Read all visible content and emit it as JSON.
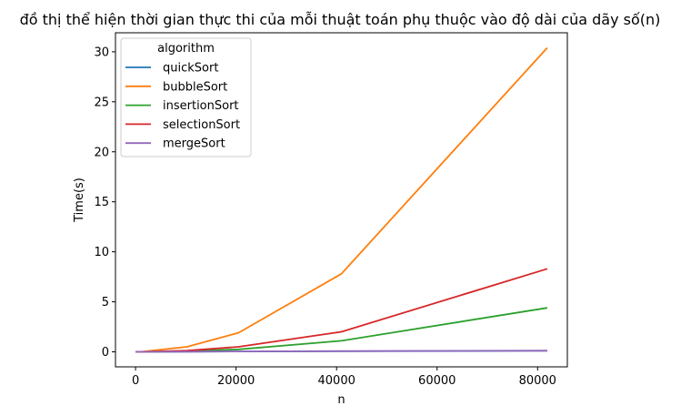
{
  "chart_data": {
    "type": "line",
    "title": "đồ thị thể hiện thời gian thực thi của mỗi thuật toán phụ thuộc vào độ dài của dãy số(n)",
    "xlabel": "n",
    "ylabel": "Time(s)",
    "xlim": [
      -4000,
      85920
    ],
    "ylim": [
      -1.5,
      31.9
    ],
    "xticks": [
      0,
      20000,
      40000,
      60000,
      80000
    ],
    "yticks": [
      0,
      5,
      10,
      15,
      20,
      25,
      30
    ],
    "legend_title": "algorithm",
    "legend_position": "upper-left",
    "grid": false,
    "x": [
      10,
      100,
      1000,
      10240,
      20480,
      40960,
      81920
    ],
    "series": [
      {
        "name": "quickSort",
        "color": "#1f77b4",
        "values": [
          0,
          0,
          0,
          0.02,
          0.04,
          0.06,
          0.1
        ]
      },
      {
        "name": "bubbleSort",
        "color": "#ff7f0e",
        "values": [
          0,
          0,
          0,
          0.5,
          1.9,
          7.8,
          30.4
        ]
      },
      {
        "name": "insertionSort",
        "color": "#2ca02c",
        "values": [
          0,
          0,
          0,
          0.05,
          0.25,
          1.1,
          4.4
        ]
      },
      {
        "name": "selectionSort",
        "color": "#d62728",
        "values": [
          0,
          0,
          0,
          0.12,
          0.5,
          2.0,
          8.3
        ]
      },
      {
        "name": "mergeSort",
        "color": "#9467bd",
        "values": [
          0,
          0,
          0,
          0.02,
          0.04,
          0.07,
          0.12
        ]
      }
    ]
  }
}
